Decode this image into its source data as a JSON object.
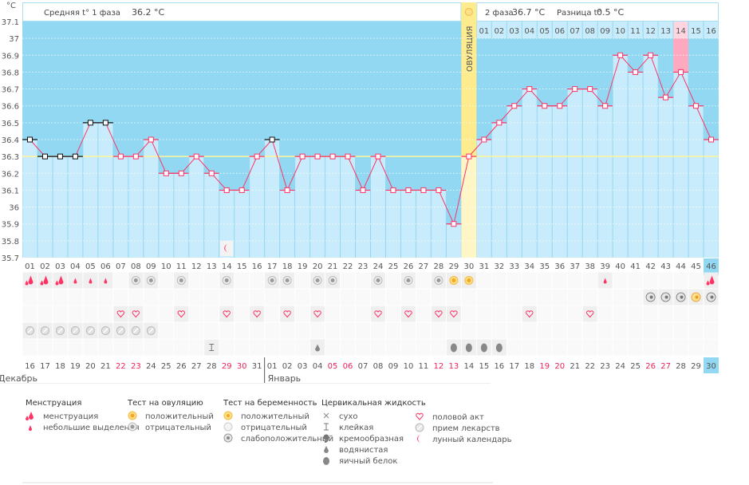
{
  "chart_data": {
    "type": "line",
    "unit_label": "°C",
    "ylim": [
      35.7,
      37.1
    ],
    "yticks": [
      "37.1",
      "37",
      "36.9",
      "36.8",
      "36.7",
      "36.6",
      "36.5",
      "36.4",
      "36.3",
      "36.2",
      "36.1",
      "36",
      "35.9",
      "35.8",
      "35.7"
    ],
    "coverline": 36.3,
    "grid": true,
    "phase1_label": "Средняя t° 1 фаза",
    "phase1_value": "36.2 °C",
    "phase2_label": "2 фаза",
    "phase2_value": "36.7 °C",
    "diff_label": "Разница t°",
    "diff_value": "0.5 °C",
    "ovulation_label": "ОВУЛЯЦИЯ",
    "ovulation_day": 30,
    "highlight_day": 44,
    "current_day": 46,
    "cycle_days": [
      "01",
      "02",
      "03",
      "04",
      "05",
      "06",
      "07",
      "08",
      "09",
      "10",
      "11",
      "12",
      "13",
      "14",
      "15",
      "16",
      "17",
      "18",
      "19",
      "20",
      "21",
      "22",
      "23",
      "24",
      "25",
      "26",
      "27",
      "28",
      "29",
      "30",
      "31",
      "32",
      "33",
      "34",
      "35",
      "36",
      "37",
      "38",
      "39",
      "40",
      "41",
      "42",
      "43",
      "44",
      "45",
      "46"
    ],
    "post_ovulation_days": [
      "01",
      "02",
      "03",
      "04",
      "05",
      "06",
      "07",
      "08",
      "09",
      "10",
      "11",
      "12",
      "13",
      "14",
      "15",
      "16"
    ],
    "temperatures": [
      36.4,
      36.3,
      36.3,
      36.3,
      36.5,
      36.5,
      36.3,
      36.3,
      36.4,
      36.2,
      36.2,
      36.3,
      36.2,
      36.1,
      36.1,
      36.3,
      36.4,
      36.1,
      36.3,
      36.3,
      36.3,
      36.3,
      36.1,
      36.3,
      36.1,
      36.1,
      36.1,
      36.1,
      35.9,
      36.3,
      36.4,
      36.5,
      36.6,
      36.7,
      36.6,
      36.6,
      36.7,
      36.7,
      36.6,
      36.9,
      36.8,
      36.9,
      36.65,
      36.8,
      36.6,
      36.4
    ],
    "marker_black_days": [
      1,
      2,
      3,
      4,
      5,
      6,
      17
    ],
    "moon_day": 14,
    "dates": [
      "16",
      "17",
      "18",
      "19",
      "20",
      "21",
      "22",
      "23",
      "24",
      "25",
      "26",
      "27",
      "28",
      "29",
      "30",
      "31",
      "01",
      "02",
      "03",
      "04",
      "05",
      "06",
      "07",
      "08",
      "09",
      "10",
      "11",
      "12",
      "13",
      "14",
      "15",
      "16",
      "17",
      "18",
      "19",
      "20",
      "21",
      "22",
      "23",
      "24",
      "25",
      "26",
      "27",
      "28",
      "29",
      "30"
    ],
    "weekend_days": [
      6,
      7,
      13,
      14,
      20,
      21,
      27,
      28,
      34,
      35,
      41,
      42
    ],
    "months": [
      {
        "label": "Декабрь",
        "start_day": 1
      },
      {
        "label": "Январь",
        "start_day": 17
      }
    ],
    "rows": {
      "menstruation_heavy": [
        1,
        2,
        3,
        46
      ],
      "menstruation_light": [
        4,
        5,
        6,
        39
      ],
      "ovulation_test_negative": [
        8,
        9,
        11,
        14,
        17,
        18,
        20,
        21,
        24,
        26,
        28
      ],
      "ovulation_test_positive": [
        29,
        30
      ],
      "pregnancy_test_weak": [
        42,
        43,
        44,
        46
      ],
      "pregnancy_test_positive": [
        45
      ],
      "intercourse": [
        7,
        8,
        11,
        14,
        16,
        18,
        20,
        24,
        26,
        28,
        29,
        34,
        38
      ],
      "medication": [
        1,
        2,
        3,
        4,
        5,
        6,
        7,
        8,
        9
      ],
      "cervical_sticky": [
        13
      ],
      "cervical_watery": [
        20
      ],
      "cervical_eggwhite": [
        29,
        30,
        31,
        32
      ]
    },
    "colors": {
      "line": "#ff3366",
      "bar": "#c8ecfb",
      "bg": "#92d8f2",
      "ovulation": "#fdeb8e",
      "highlight": "#ffa9c0",
      "coverline": "#fff59a"
    }
  },
  "legend": {
    "menstruation": {
      "title": "Менструация",
      "items": [
        "менструация",
        "небольшие выделения"
      ]
    },
    "ovulation_test": {
      "title": "Тест на овуляцию",
      "items": [
        "положительный",
        "отрицательный"
      ]
    },
    "pregnancy_test": {
      "title": "Тест на беременность",
      "items": [
        "положительный",
        "отрицательный",
        "слабоположительный"
      ]
    },
    "cervical": {
      "title": "Цервикальная жидкость",
      "items": [
        "сухо",
        "клейкая",
        "кремообразная",
        "водянистая",
        "яичный белок"
      ]
    },
    "other": {
      "items": [
        "половой акт",
        "прием лекарств",
        "лунный календарь"
      ]
    }
  }
}
